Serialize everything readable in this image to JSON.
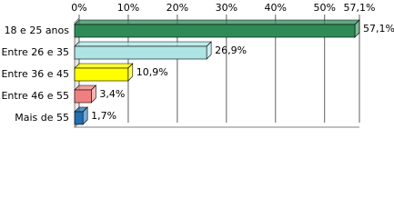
{
  "chart_data": {
    "type": "bar",
    "orientation": "horizontal",
    "categories": [
      "18 e 25 anos",
      "Entre 26 e 35",
      "Entre 36 e 45",
      "Entre 46 e 55",
      "Mais de 55"
    ],
    "values": [
      57.1,
      26.9,
      10.9,
      3.4,
      1.7
    ],
    "value_labels": [
      "57,1%",
      "26,9%",
      "10,9%",
      "3,4%",
      "1,7%"
    ],
    "colors": [
      "#2e8b57",
      "#aee4e4",
      "#ffff00",
      "#f08080",
      "#1f6fb2"
    ],
    "xlim": [
      0,
      57.1
    ],
    "xticks": [
      {
        "value": 0,
        "label": "0%"
      },
      {
        "value": 10,
        "label": "10%"
      },
      {
        "value": 20,
        "label": "20%"
      },
      {
        "value": 30,
        "label": "30%"
      },
      {
        "value": 40,
        "label": "40%"
      },
      {
        "value": 50,
        "label": "50%"
      },
      {
        "value": 57.1,
        "label": "57,1%"
      }
    ],
    "grid": true
  }
}
